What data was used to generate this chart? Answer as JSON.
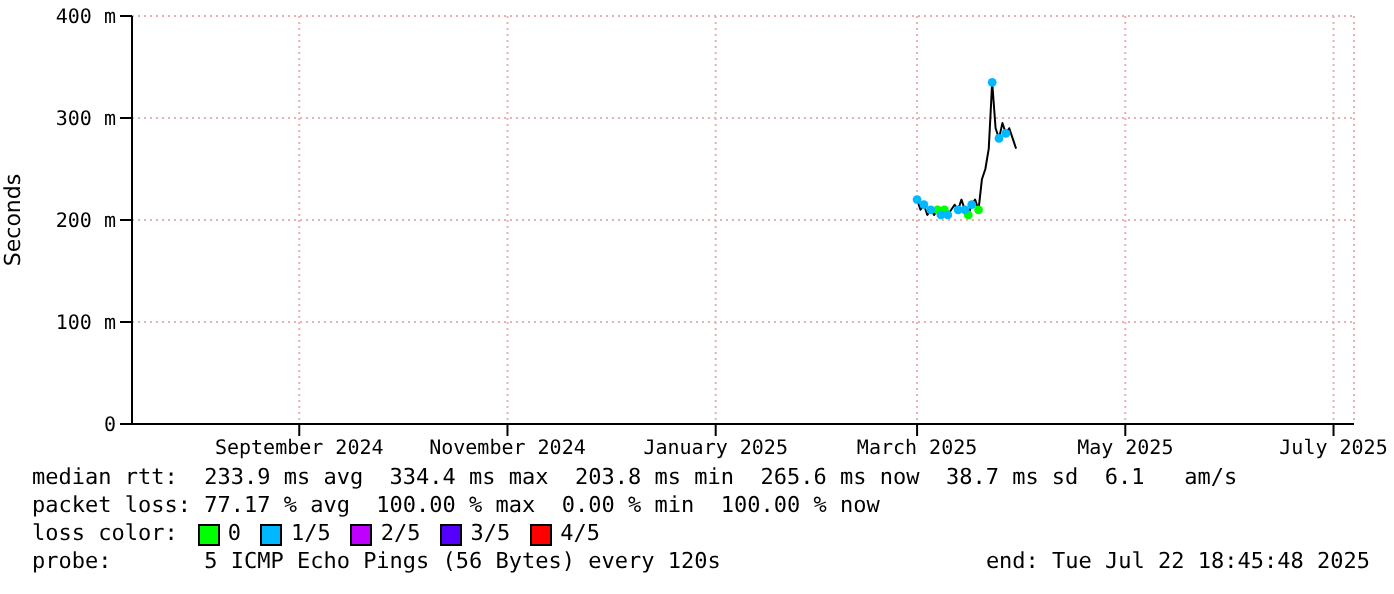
{
  "chart_data": {
    "type": "line",
    "ylabel": "Seconds",
    "legend_title": "loss color:",
    "legend": "bottom",
    "grid": true,
    "x": [
      "2025-03-01",
      "2025-03-02",
      "2025-03-03",
      "2025-03-04",
      "2025-03-05",
      "2025-03-06",
      "2025-03-07",
      "2025-03-08",
      "2025-03-09",
      "2025-03-10",
      "2025-03-11",
      "2025-03-12",
      "2025-03-13",
      "2025-03-14",
      "2025-03-15",
      "2025-03-16",
      "2025-03-17",
      "2025-03-18",
      "2025-03-19",
      "2025-03-20",
      "2025-03-21",
      "2025-03-22",
      "2025-03-23",
      "2025-03-24",
      "2025-03-25",
      "2025-03-26",
      "2025-03-27",
      "2025-03-28",
      "2025-03-29",
      "2025-03-30"
    ],
    "xlim": [
      "2024-07-14",
      "2025-07-07"
    ],
    "xticks": [
      {
        "value": "2024-09-01",
        "label": "September 2024"
      },
      {
        "value": "2024-11-01",
        "label": "November 2024"
      },
      {
        "value": "2025-01-01",
        "label": "January 2025"
      },
      {
        "value": "2025-03-01",
        "label": "March 2025"
      },
      {
        "value": "2025-05-01",
        "label": "May 2025"
      },
      {
        "value": "2025-07-01",
        "label": "July 2025"
      }
    ],
    "ylim": [
      0,
      400
    ],
    "yticks": [
      0,
      {
        "value": 100,
        "label": "100 m"
      },
      {
        "value": 200,
        "label": "200 m"
      },
      {
        "value": 300,
        "label": "300 m"
      },
      {
        "value": 400,
        "label": "400 m"
      }
    ],
    "series": [
      {
        "color": "#000000",
        "values": [
          220,
          210,
          215,
          205,
          210,
          205,
          210,
          205,
          210,
          205,
          210,
          215,
          210,
          220,
          210,
          205,
          215,
          220,
          210,
          240,
          250,
          270,
          335,
          290,
          280,
          295,
          285,
          290,
          280,
          270
        ]
      },
      {
        "type": "scatter",
        "name": "0",
        "marker": "circle",
        "color": "#00ff00",
        "values": [
          null,
          null,
          null,
          null,
          null,
          null,
          210,
          null,
          210,
          null,
          null,
          null,
          null,
          null,
          null,
          205,
          null,
          null,
          210,
          null,
          null,
          null,
          null,
          null,
          null,
          null,
          null,
          null,
          null,
          null
        ]
      },
      {
        "type": "scatter",
        "name": "1/5",
        "marker": "circle",
        "color": "#00b8ff",
        "values": [
          220,
          null,
          215,
          null,
          210,
          null,
          null,
          205,
          null,
          205,
          null,
          null,
          210,
          null,
          210,
          null,
          215,
          null,
          null,
          null,
          null,
          null,
          335,
          null,
          280,
          null,
          285,
          null,
          null,
          null
        ]
      },
      {
        "type": "scatter",
        "name": "2/5",
        "marker": "circle",
        "color": "#bf00ff",
        "values": [
          null,
          null,
          null,
          null,
          null,
          null,
          null,
          null,
          null,
          null,
          null,
          null,
          null,
          null,
          null,
          null,
          null,
          null,
          null,
          null,
          null,
          null,
          null,
          null,
          null,
          null,
          null,
          null,
          null,
          null
        ]
      },
      {
        "type": "scatter",
        "name": "3/5",
        "marker": "circle",
        "color": "#5500ff",
        "values": [
          null,
          null,
          null,
          null,
          null,
          null,
          null,
          null,
          null,
          null,
          null,
          null,
          null,
          null,
          null,
          null,
          null,
          null,
          null,
          null,
          null,
          null,
          null,
          null,
          null,
          null,
          null,
          null,
          null,
          null
        ]
      },
      {
        "type": "scatter",
        "name": "4/5",
        "marker": "circle",
        "color": "#ff0000",
        "values": [
          null,
          null,
          null,
          null,
          null,
          null,
          null,
          null,
          null,
          null,
          null,
          null,
          null,
          null,
          null,
          null,
          null,
          null,
          null,
          null,
          null,
          null,
          null,
          null,
          null,
          null,
          null,
          null,
          null,
          null
        ]
      }
    ],
    "annotations": [
      "median rtt:  233.9 ms avg  334.4 ms max  203.8 ms min  265.6 ms now  38.7 ms sd  6.1   am/s",
      "packet loss: 77.17 % avg  100.00 % max  0.00 % min  100.00 % now",
      "probe:       5 ICMP Echo Pings (56 Bytes) every 120s",
      "end: Tue Jul 22 18:45:48 2025"
    ]
  }
}
